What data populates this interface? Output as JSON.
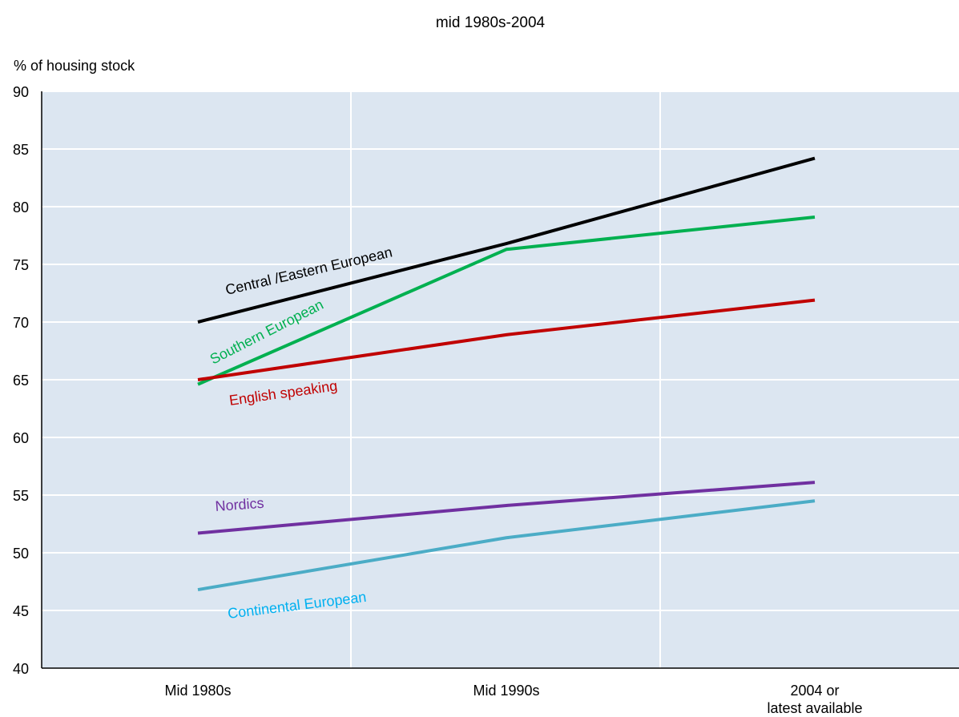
{
  "chart_data": {
    "type": "line",
    "title": "mid 1980s-2004",
    "ylabel": "% of housing stock",
    "xlabel": "",
    "categories": [
      "Mid 1980s",
      "Mid 1990s",
      "2004 or|latest available"
    ],
    "ylim": [
      40,
      90
    ],
    "yticks": [
      40,
      45,
      50,
      55,
      60,
      65,
      70,
      75,
      80,
      85,
      90
    ],
    "grid": true,
    "plot_background": "#dce6f1",
    "series": [
      {
        "name": "Central /Eastern European",
        "color": "#000000",
        "label_color": "#000000",
        "values": [
          70.0,
          76.8,
          84.2
        ]
      },
      {
        "name": "Southern European",
        "color": "#00b050",
        "label_color": "#00b050",
        "values": [
          64.6,
          76.3,
          79.1
        ]
      },
      {
        "name": "English speaking",
        "color": "#c00000",
        "label_color": "#c00000",
        "values": [
          65.0,
          68.9,
          71.9
        ]
      },
      {
        "name": "Nordics",
        "color": "#7030a0",
        "label_color": "#7030a0",
        "values": [
          51.7,
          54.1,
          56.1
        ]
      },
      {
        "name": "Continental European",
        "color": "#4bacc6",
        "label_color": "#00b0f0",
        "values": [
          46.8,
          51.3,
          54.5
        ]
      }
    ]
  }
}
